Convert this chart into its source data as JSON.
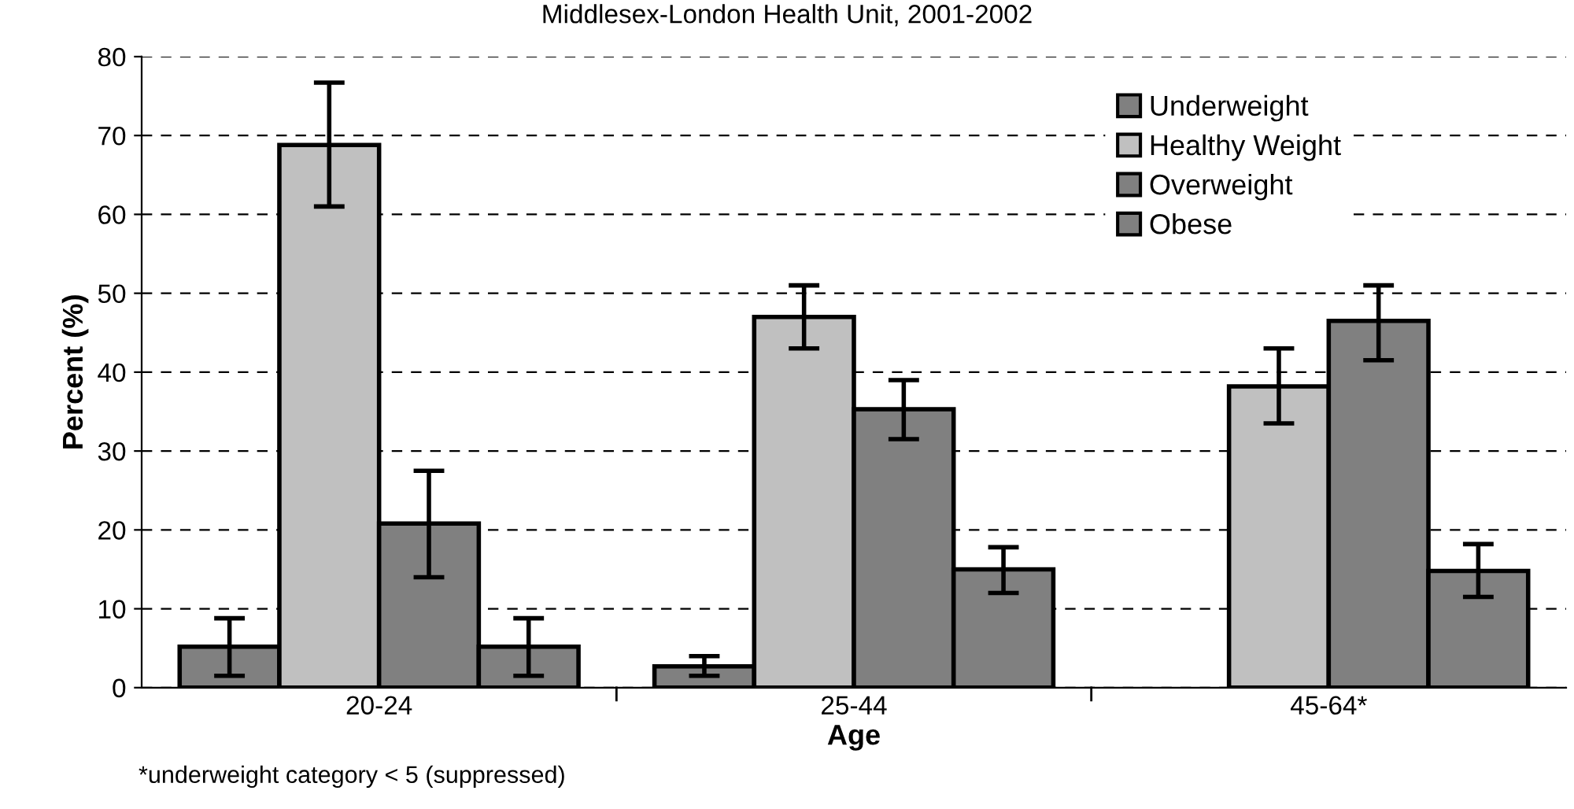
{
  "chart_data": {
    "type": "bar",
    "subtitle": "Middlesex-London Health Unit, 2001-2002",
    "xlabel": "Age",
    "ylabel": "Percent (%)",
    "categories": [
      "20-24",
      "25-44",
      "45-64*"
    ],
    "series": [
      {
        "name": "Underweight",
        "color": "#808080",
        "values": [
          5.2,
          2.7,
          null
        ],
        "errors": [
          [
            1.5,
            8.8
          ],
          [
            1.5,
            4.0
          ],
          null
        ]
      },
      {
        "name": "Healthy Weight",
        "color": "#c0c0c0",
        "values": [
          68.8,
          47.0,
          38.2
        ],
        "errors": [
          [
            61.0,
            76.7
          ],
          [
            43.0,
            51.0
          ],
          [
            33.5,
            43.0
          ]
        ]
      },
      {
        "name": "Overweight",
        "color": "#808080",
        "values": [
          20.8,
          35.3,
          46.5
        ],
        "errors": [
          [
            14.0,
            27.5
          ],
          [
            31.5,
            39.0
          ],
          [
            41.5,
            51.0
          ]
        ]
      },
      {
        "name": "Obese",
        "color": "#808080",
        "values": [
          5.2,
          15.0,
          14.8
        ],
        "errors": [
          [
            1.5,
            8.8
          ],
          [
            12.0,
            17.8
          ],
          [
            11.5,
            18.2
          ]
        ]
      }
    ],
    "ylim": [
      0,
      80
    ],
    "yticks": [
      0,
      10,
      20,
      30,
      40,
      50,
      60,
      70,
      80
    ],
    "grid": "y",
    "legend": "top right",
    "annotations": [
      "*underweight category < 5 (suppressed)"
    ]
  }
}
